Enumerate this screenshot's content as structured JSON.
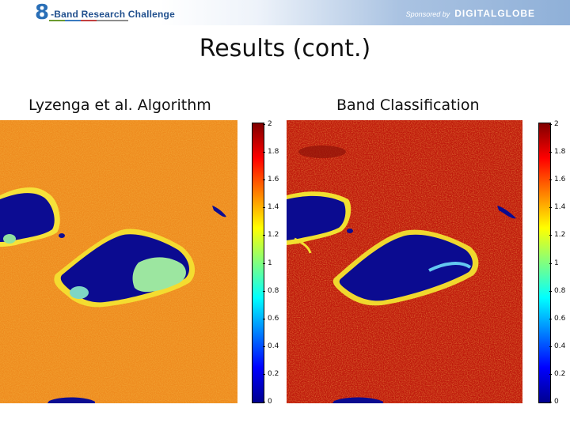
{
  "header": {
    "logo_mark": "8",
    "logo_text": "-Band Research Challenge",
    "sponsor_label": "Sponsored by",
    "sponsor_name": "DIGITALGLOBE"
  },
  "slide": {
    "title": "Results (cont.)",
    "left_caption": "Lyzenga et al. Algorithm",
    "right_caption": "Band Classification"
  },
  "colorbar": {
    "ticks": [
      "2",
      "1.8",
      "1.6",
      "1.4",
      "1.2",
      "1",
      "0.8",
      "0.6",
      "0.4",
      "0.2",
      "0"
    ],
    "colors": [
      "#00008f",
      "#0000ff",
      "#0080ff",
      "#00ffff",
      "#80ff80",
      "#ffff00",
      "#ff8000",
      "#ff0000",
      "#800000"
    ]
  },
  "colors": {
    "left_background": "#ef8a1c",
    "right_background": "#c01a0a",
    "water": "#0a0a90",
    "shore_yellow": "#f5e030",
    "shoal_cyan": "#8ce0a8"
  }
}
